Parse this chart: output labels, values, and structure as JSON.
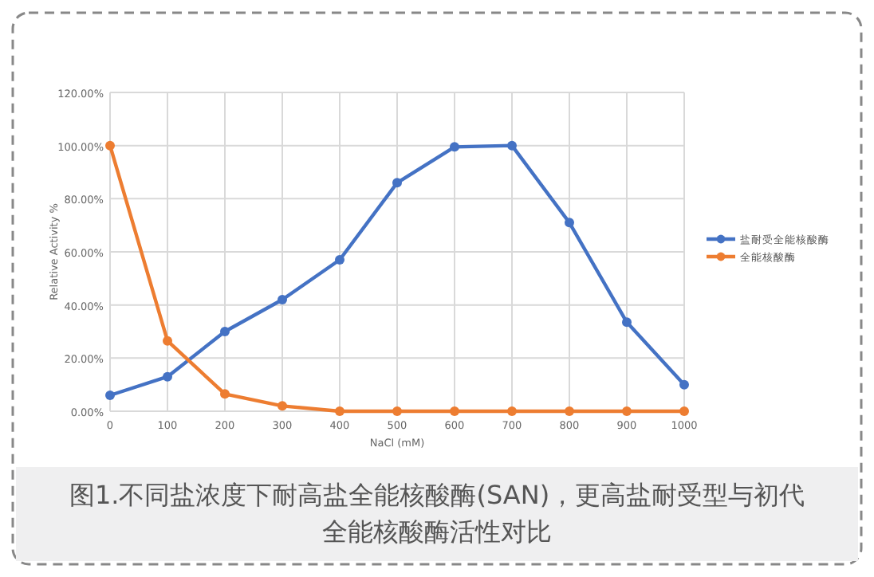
{
  "chart_data": {
    "type": "line",
    "xlabel": "NaCl (mM)",
    "ylabel": "Relative Activity %",
    "categories": [
      "0",
      "100",
      "200",
      "300",
      "400",
      "500",
      "600",
      "700",
      "800",
      "900",
      "1000"
    ],
    "series": [
      {
        "name": "盐耐受全能核酸酶",
        "color": "#4472c4",
        "values": [
          6,
          13,
          30,
          42,
          57,
          86,
          99.5,
          100,
          71,
          33.5,
          10
        ]
      },
      {
        "name": "全能核酸酶",
        "color": "#ed7d31",
        "values": [
          100,
          26.5,
          6.5,
          2,
          0,
          0,
          0,
          0,
          0,
          0,
          0
        ]
      }
    ],
    "ylim": [
      0,
      120
    ],
    "yticks": [
      {
        "value": 0,
        "label": "0.00%"
      },
      {
        "value": 20,
        "label": "20.00%"
      },
      {
        "value": 40,
        "label": "40.00%"
      },
      {
        "value": 60,
        "label": "60.00%"
      },
      {
        "value": 80,
        "label": "80.00%"
      },
      {
        "value": 100,
        "label": "100.00%"
      },
      {
        "value": 120,
        "label": "120.00%"
      }
    ],
    "grid": true,
    "legend": "right",
    "marker": "circle",
    "line_style": "solid",
    "annotations": [
      "图1.不同盐浓度下耐高盐全能核酸酶(SAN)，更高盐耐受型与初代全能核酸酶活性对比"
    ]
  }
}
